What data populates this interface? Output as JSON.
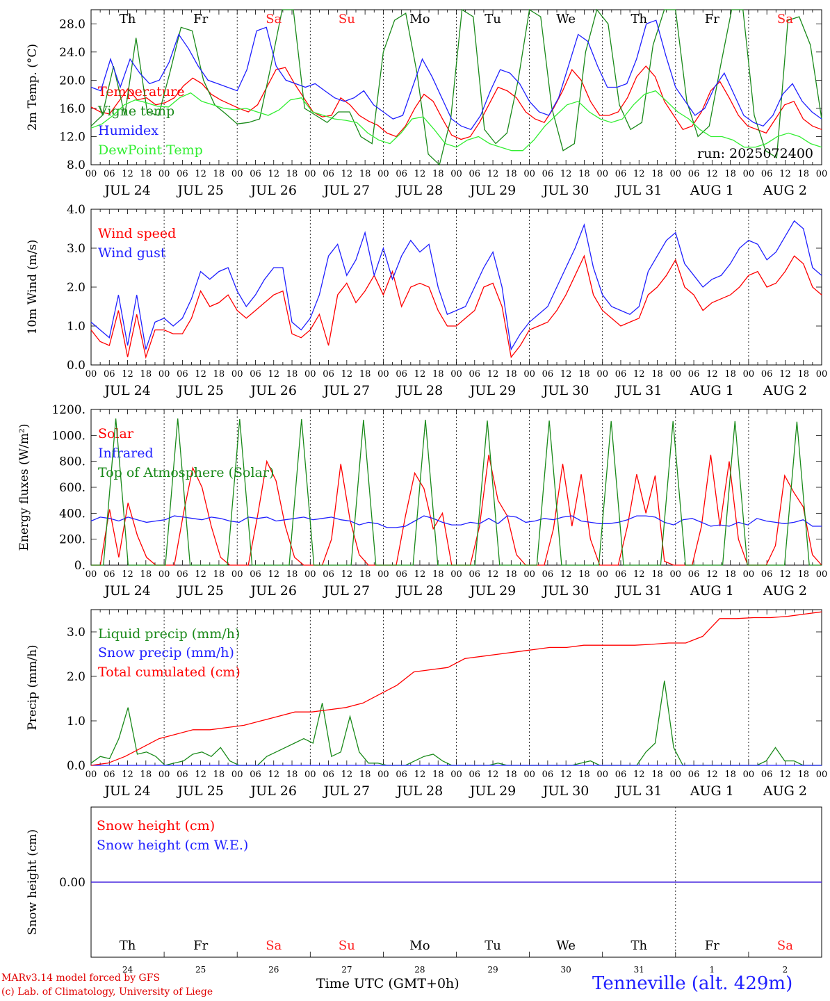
{
  "footer": {
    "model": "MARv3.14 model forced by GFS",
    "lab": "(c) Lab. of Climatology, University of Liege",
    "time_label": "Time UTC (GMT+0h)",
    "station": "Tenneville (alt. 429m)"
  },
  "colors": {
    "red": "#ff0000",
    "green": "#1a8a1a",
    "blue": "#2020ff",
    "lime": "#33ee33",
    "weekend": "#ff2020"
  },
  "chart_data": [
    {
      "type": "line",
      "ylabel": "2m Temp. (°C)",
      "ylim": [
        8,
        30
      ],
      "yticks": [
        "8.0",
        "12.0",
        "16.0",
        "20.0",
        "24.0",
        "28.0"
      ],
      "run": "run: 2025072400",
      "x_hours_from_jul24_00utc_step": 3,
      "weekday_labels": [
        "Th",
        "Fr",
        "Sa",
        "Su",
        "Mo",
        "Tu",
        "We",
        "Th",
        "Fr",
        "Sa"
      ],
      "weekend_days": [
        2,
        3,
        9
      ],
      "date_labels": [
        "JUL 24",
        "JUL 25",
        "JUL 26",
        "JUL 27",
        "JUL 28",
        "JUL 29",
        "JUL 30",
        "JUL 31",
        "AUG  1",
        "AUG  2"
      ],
      "hour_labels": [
        "00",
        "06",
        "12",
        "18"
      ],
      "series": [
        {
          "name": "Temperature",
          "color": "#ff0000",
          "values": [
            16.2,
            15.5,
            15.2,
            17.0,
            18.8,
            17.2,
            17.5,
            16.5,
            16.8,
            17.5,
            19.2,
            20.3,
            19.5,
            18.0,
            17.2,
            16.6,
            16.0,
            15.5,
            16.5,
            19.0,
            21.5,
            21.8,
            19.5,
            17.5,
            15.5,
            14.8,
            15.0,
            17.5,
            16.5,
            15.0,
            14.2,
            13.6,
            12.5,
            12.0,
            13.5,
            16.0,
            18.0,
            17.0,
            14.5,
            12.2,
            11.6,
            12.0,
            14.0,
            16.5,
            19.0,
            18.5,
            17.5,
            15.5,
            14.5,
            14.0,
            16.0,
            18.5,
            21.5,
            20.0,
            17.0,
            15.0,
            15.0,
            15.5,
            17.5,
            20.5,
            22.0,
            20.5,
            17.0,
            15.0,
            13.0,
            13.5,
            15.5,
            18.5,
            19.8,
            17.5,
            15.0,
            13.5,
            13.0,
            12.5,
            14.5,
            16.5,
            17.0,
            14.5,
            13.5,
            13.0
          ]
        },
        {
          "name": "Vigne temp",
          "color": "#1a8a1a",
          "values": [
            13.5,
            15.0,
            22.0,
            15.0,
            26.0,
            15.5,
            15.0,
            21.0,
            27.5,
            27.0,
            20.0,
            16.5,
            15.2,
            13.8,
            14.0,
            14.5,
            22.0,
            31.0,
            30.0,
            16.0,
            15.0,
            14.0,
            15.5,
            15.5,
            12.0,
            11.0,
            24.0,
            28.5,
            29.5,
            21.0,
            9.5,
            7.5,
            14.5,
            30.0,
            29.0,
            13.0,
            11.0,
            12.5,
            20.0,
            30.0,
            29.0,
            16.0,
            10.0,
            11.0,
            24.0,
            30.0,
            28.0,
            16.5,
            13.0,
            14.0,
            25.0,
            31.0,
            31.0,
            17.0,
            12.0,
            13.5,
            22.0,
            31.0,
            30.0,
            15.0,
            10.0,
            9.0,
            28.5,
            29.0,
            25.0,
            14.5
          ]
        },
        {
          "name": "Humidex",
          "color": "#2020ff",
          "values": [
            19.0,
            18.5,
            23.0,
            19.0,
            23.0,
            21.0,
            19.5,
            20.0,
            22.5,
            26.5,
            24.5,
            22.0,
            20.0,
            19.5,
            19.0,
            18.5,
            21.5,
            27.0,
            27.5,
            22.0,
            20.0,
            19.5,
            19.0,
            19.5,
            18.5,
            17.5,
            17.0,
            17.5,
            18.5,
            16.5,
            15.5,
            14.5,
            15.0,
            19.0,
            23.0,
            20.5,
            17.5,
            14.5,
            13.5,
            13.0,
            15.0,
            18.5,
            21.5,
            21.0,
            19.5,
            17.0,
            15.5,
            15.0,
            17.5,
            22.0,
            26.5,
            25.5,
            22.0,
            19.0,
            19.0,
            19.5,
            23.0,
            28.0,
            28.5,
            23.5,
            19.0,
            17.0,
            15.0,
            16.0,
            19.0,
            21.0,
            18.0,
            15.0,
            14.0,
            13.5,
            15.0,
            18.0,
            19.5,
            17.0,
            15.5,
            14.5
          ]
        },
        {
          "name": "DewPoint Temp",
          "color": "#33ee33",
          "values": [
            13.2,
            13.8,
            15.0,
            16.5,
            17.2,
            16.8,
            16.3,
            16.2,
            17.5,
            18.2,
            17.0,
            16.5,
            16.0,
            15.8,
            16.0,
            15.5,
            15.0,
            15.8,
            17.2,
            17.5,
            15.5,
            15.0,
            14.5,
            14.3,
            14.0,
            12.5,
            11.5,
            11.0,
            12.5,
            14.5,
            14.8,
            13.0,
            11.0,
            10.5,
            11.5,
            12.0,
            11.0,
            10.5,
            10.0,
            10.0,
            11.5,
            13.5,
            15.0,
            16.5,
            17.0,
            15.5,
            14.5,
            14.0,
            14.5,
            16.5,
            18.0,
            18.5,
            17.0,
            15.5,
            14.5,
            13.0,
            12.0,
            12.0,
            11.5,
            10.5,
            10.5,
            11.0,
            12.0,
            12.5,
            12.0,
            11.0,
            10.5
          ]
        }
      ]
    },
    {
      "type": "line",
      "ylabel": "10m Wind (m/s)",
      "ylim": [
        0,
        4
      ],
      "yticks": [
        "0.0",
        "1.0",
        "2.0",
        "3.0",
        "4.0"
      ],
      "series": [
        {
          "name": "Wind speed",
          "color": "#ff0000",
          "values": [
            0.9,
            0.6,
            0.5,
            1.4,
            0.2,
            1.3,
            0.2,
            0.9,
            0.9,
            0.8,
            0.8,
            1.2,
            1.9,
            1.5,
            1.6,
            1.8,
            1.4,
            1.2,
            1.4,
            1.6,
            1.8,
            1.9,
            0.8,
            0.7,
            0.9,
            1.3,
            0.5,
            1.8,
            2.1,
            1.6,
            1.9,
            2.3,
            1.8,
            2.4,
            1.5,
            2.0,
            2.1,
            2.0,
            1.4,
            1.0,
            1.0,
            1.2,
            1.4,
            2.0,
            2.1,
            1.5,
            0.2,
            0.5,
            0.9,
            1.0,
            1.1,
            1.4,
            1.8,
            2.3,
            2.8,
            1.8,
            1.4,
            1.2,
            1.0,
            1.1,
            1.2,
            1.8,
            2.0,
            2.3,
            2.7,
            2.0,
            1.8,
            1.4,
            1.6,
            1.7,
            1.8,
            2.0,
            2.3,
            2.4,
            2.0,
            2.1,
            2.4,
            2.8,
            2.6,
            2.0,
            1.8
          ]
        },
        {
          "name": "Wind gust",
          "color": "#2020ff",
          "values": [
            1.1,
            0.9,
            0.7,
            1.8,
            0.5,
            1.8,
            0.4,
            1.1,
            1.2,
            1.0,
            1.2,
            1.7,
            2.4,
            2.2,
            2.4,
            2.5,
            1.9,
            1.5,
            1.8,
            2.2,
            2.5,
            2.5,
            1.1,
            0.9,
            1.2,
            1.8,
            2.8,
            3.1,
            2.3,
            2.7,
            3.4,
            2.3,
            3.0,
            2.2,
            2.8,
            3.2,
            2.9,
            3.1,
            2.0,
            1.3,
            1.4,
            1.5,
            2.0,
            2.5,
            2.9,
            2.0,
            0.4,
            0.8,
            1.1,
            1.3,
            1.5,
            2.0,
            2.5,
            3.0,
            3.6,
            2.5,
            1.8,
            1.5,
            1.4,
            1.3,
            1.5,
            2.4,
            2.8,
            3.2,
            3.4,
            2.6,
            2.3,
            2.0,
            2.2,
            2.3,
            2.6,
            3.0,
            3.2,
            3.1,
            2.7,
            2.9,
            3.3,
            3.7,
            3.5,
            2.5,
            2.3
          ]
        }
      ]
    },
    {
      "type": "line",
      "ylabel": "Energy fluxes (W/m²)",
      "ylim": [
        0,
        1200
      ],
      "yticks": [
        "0.",
        "200.",
        "400.",
        "600.",
        "800.",
        "1000.",
        "1200."
      ],
      "series": [
        {
          "name": "Solar",
          "color": "#ff0000",
          "values": [
            0,
            0,
            430,
            60,
            480,
            230,
            60,
            0,
            0,
            0,
            400,
            750,
            600,
            300,
            60,
            0,
            0,
            0,
            380,
            800,
            650,
            300,
            60,
            0,
            0,
            0,
            200,
            780,
            350,
            80,
            0,
            0,
            0,
            0,
            380,
            710,
            590,
            280,
            400,
            0,
            0,
            0,
            300,
            850,
            500,
            380,
            80,
            0,
            0,
            0,
            280,
            780,
            300,
            700,
            200,
            0,
            0,
            0,
            300,
            700,
            400,
            690,
            30,
            0,
            0,
            0,
            300,
            850,
            300,
            800,
            200,
            0,
            0,
            0,
            150,
            690,
            560,
            450,
            80,
            0
          ]
        },
        {
          "name": "Infrared",
          "color": "#2020ff",
          "values": [
            340,
            370,
            360,
            340,
            370,
            350,
            330,
            340,
            350,
            380,
            370,
            360,
            350,
            370,
            360,
            340,
            330,
            370,
            360,
            370,
            340,
            350,
            360,
            370,
            350,
            360,
            370,
            350,
            340,
            310,
            330,
            320,
            290,
            290,
            300,
            340,
            380,
            360,
            330,
            310,
            310,
            330,
            320,
            360,
            320,
            380,
            370,
            330,
            340,
            360,
            350,
            370,
            380,
            340,
            330,
            320,
            320,
            330,
            350,
            380,
            380,
            370,
            330,
            310,
            350,
            360,
            330,
            300,
            310,
            300,
            330,
            310,
            360,
            340,
            330,
            320,
            330,
            350,
            300,
            300
          ]
        },
        {
          "name": "Top of Atmosphere (Solar)",
          "color": "#1a8a1a",
          "values": [
            0,
            0,
            1130,
            0,
            0,
            0,
            0,
            1130,
            0,
            0,
            0,
            0,
            1125,
            0,
            0,
            0,
            0,
            1125,
            0,
            0,
            0,
            0,
            1120,
            0,
            0,
            0,
            0,
            1120,
            0,
            0,
            0,
            0,
            1115,
            0,
            0,
            0,
            0,
            1115,
            0,
            0,
            0,
            0,
            1110,
            0,
            0,
            0,
            0,
            1110,
            0,
            0,
            0,
            0,
            1110,
            0,
            0,
            0,
            0,
            1105,
            0,
            0
          ]
        }
      ]
    },
    {
      "type": "line",
      "ylabel": "Precip (mm/h)",
      "ylim": [
        0,
        3.5
      ],
      "yticks": [
        "0.0",
        "1.0",
        "2.0",
        "3.0"
      ],
      "series": [
        {
          "name": "Liquid precip (mm/h)",
          "color": "#1a8a1a",
          "values": [
            0.05,
            0.2,
            0.15,
            0.6,
            1.3,
            0.25,
            0.3,
            0.2,
            0.0,
            0.05,
            0.1,
            0.25,
            0.3,
            0.2,
            0.4,
            0.1,
            0.0,
            0.0,
            0.0,
            0.2,
            0.3,
            0.4,
            0.5,
            0.6,
            0.5,
            1.4,
            0.2,
            0.3,
            1.1,
            0.3,
            0.05,
            0.05,
            0.0,
            0.0,
            0.0,
            0.1,
            0.2,
            0.25,
            0.1,
            0.0,
            0.0,
            0.0,
            0.0,
            0.0,
            0.05,
            0.0,
            0.0,
            0.0,
            0.0,
            0.0,
            0.0,
            0.0,
            0.0,
            0.05,
            0.1,
            0.0,
            0.0,
            0.0,
            0.0,
            0.0,
            0.3,
            0.5,
            1.9,
            0.4,
            0.0,
            0.0,
            0.0,
            0.0,
            0.0,
            0.0,
            0.0,
            0.0,
            0.0,
            0.1,
            0.4,
            0.1,
            0.1,
            0.0,
            0.0,
            0.0
          ]
        },
        {
          "name": "Snow precip (mm/h)",
          "color": "#2020ff",
          "values": [
            0,
            0,
            0,
            0,
            0,
            0,
            0,
            0,
            0,
            0
          ]
        },
        {
          "name": "Total cumulated (cm)",
          "color": "#ff0000",
          "values": [
            0.0,
            0.05,
            0.2,
            0.4,
            0.6,
            0.7,
            0.8,
            0.8,
            0.85,
            0.9,
            1.0,
            1.1,
            1.2,
            1.2,
            1.25,
            1.3,
            1.4,
            1.6,
            1.8,
            2.1,
            2.15,
            2.2,
            2.4,
            2.45,
            2.5,
            2.55,
            2.6,
            2.65,
            2.65,
            2.7,
            2.7,
            2.7,
            2.7,
            2.72,
            2.75,
            2.75,
            2.9,
            3.3,
            3.3,
            3.32,
            3.32,
            3.35,
            3.4,
            3.45
          ]
        }
      ]
    },
    {
      "type": "line",
      "ylabel": "Snow height (cm)",
      "ylim": [
        -1,
        1
      ],
      "yticks": [
        "0.00"
      ],
      "bottom_weekdays": [
        "Th",
        "Fr",
        "Sa",
        "Su",
        "Mo",
        "Tu",
        "We",
        "Th",
        "Fr",
        "Sa"
      ],
      "bottom_days": [
        "24",
        "25",
        "26",
        "27",
        "28",
        "29",
        "30",
        "31",
        "1",
        "2"
      ],
      "series": [
        {
          "name": "Snow height (cm)",
          "color": "#ff0000",
          "values": [
            0,
            0
          ]
        },
        {
          "name": "Snow height (cm W.E.)",
          "color": "#2020ff",
          "values": [
            0,
            0
          ]
        }
      ]
    }
  ]
}
